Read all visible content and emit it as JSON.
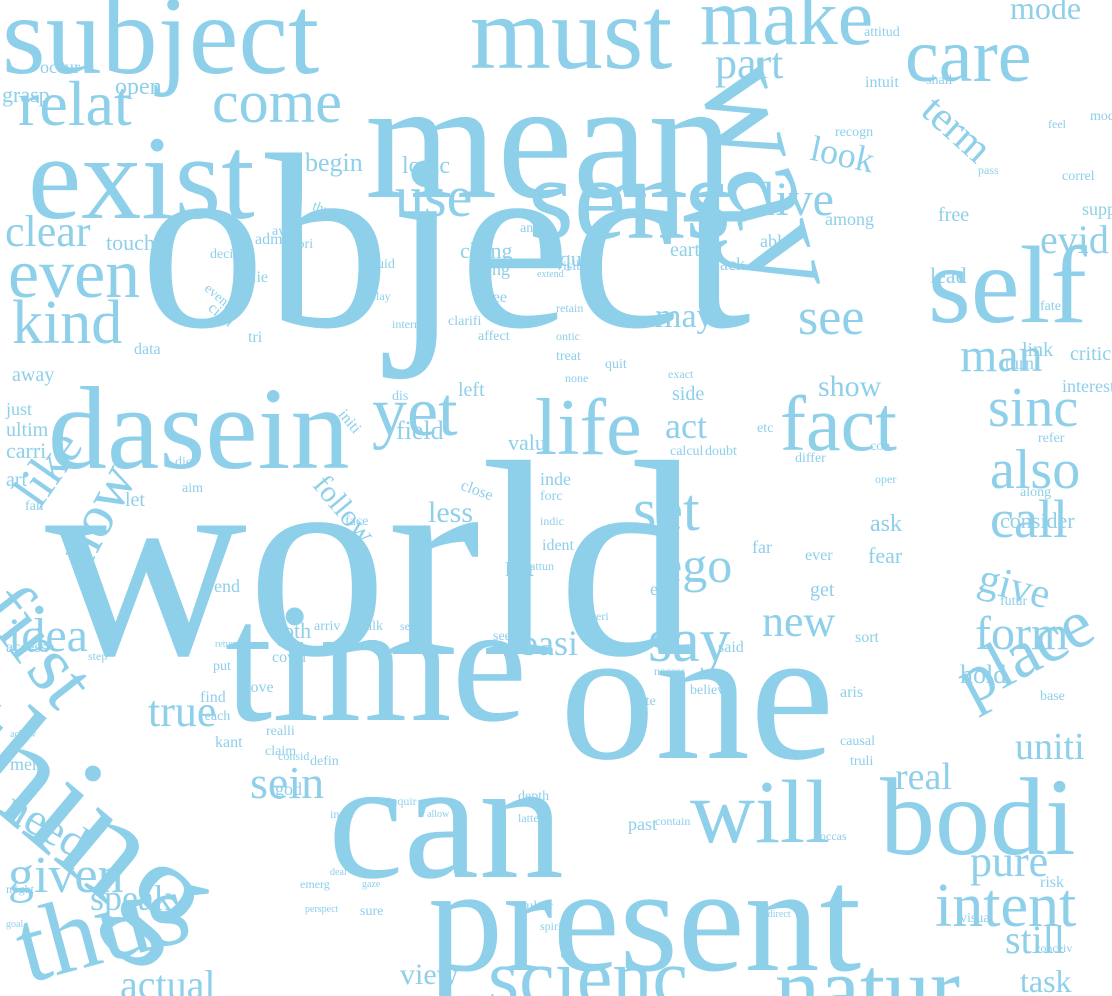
{
  "word_color": "#8ecfea",
  "background": "#ffffff",
  "words": [
    {
      "text": "subject",
      "weight": 112
    },
    {
      "text": "must",
      "weight": 104
    },
    {
      "text": "make",
      "weight": 80
    },
    {
      "text": "mode",
      "weight": 32
    },
    {
      "text": "mean",
      "weight": 170
    },
    {
      "text": "care",
      "weight": 76
    },
    {
      "text": "way",
      "weight": 140
    },
    {
      "text": "part",
      "weight": 44
    },
    {
      "text": "relat",
      "weight": 64
    },
    {
      "text": "come",
      "weight": 60
    },
    {
      "text": "exist",
      "weight": 120
    },
    {
      "text": "sens",
      "weight": 118
    },
    {
      "text": "term",
      "weight": 42
    },
    {
      "text": "look",
      "weight": 36
    },
    {
      "text": "use",
      "weight": 58
    },
    {
      "text": "live",
      "weight": 48
    },
    {
      "text": "evid",
      "weight": 40
    },
    {
      "text": "clear",
      "weight": 44
    },
    {
      "text": "object",
      "weight": 250
    },
    {
      "text": "even",
      "weight": 70
    },
    {
      "text": "self",
      "weight": 110
    },
    {
      "text": "kind",
      "weight": 62
    },
    {
      "text": "see",
      "weight": 52
    },
    {
      "text": "man",
      "weight": 48
    },
    {
      "text": "may",
      "weight": 34
    },
    {
      "text": "dasein",
      "weight": 118
    },
    {
      "text": "life",
      "weight": 80
    },
    {
      "text": "fact",
      "weight": 78
    },
    {
      "text": "sinc",
      "weight": 56
    },
    {
      "text": "yet",
      "weight": 70
    },
    {
      "text": "act",
      "weight": 36
    },
    {
      "text": "show",
      "weight": 30
    },
    {
      "text": "also",
      "weight": 56
    },
    {
      "text": "world",
      "weight": 280
    },
    {
      "text": "like",
      "weight": 52
    },
    {
      "text": "now",
      "weight": 60
    },
    {
      "text": "call",
      "weight": 54
    },
    {
      "text": "set",
      "weight": 60
    },
    {
      "text": "first",
      "weight": 80
    },
    {
      "text": "ego",
      "weight": 50
    },
    {
      "text": "give",
      "weight": 42
    },
    {
      "text": "idea",
      "weight": 48
    },
    {
      "text": "say",
      "weight": 62
    },
    {
      "text": "new",
      "weight": 44
    },
    {
      "text": "form",
      "weight": 48
    },
    {
      "text": "time",
      "weight": 170
    },
    {
      "text": "one",
      "weight": 190
    },
    {
      "text": "place",
      "weight": 68
    },
    {
      "text": "true",
      "weight": 44
    },
    {
      "text": "thing",
      "weight": 150
    },
    {
      "text": "uniti",
      "weight": 38
    },
    {
      "text": "can",
      "weight": 170
    },
    {
      "text": "sein",
      "weight": 46
    },
    {
      "text": "real",
      "weight": 38
    },
    {
      "text": "will",
      "weight": 90
    },
    {
      "text": "bodi",
      "weight": 110
    },
    {
      "text": "need",
      "weight": 46
    },
    {
      "text": "given",
      "weight": 52
    },
    {
      "text": "pure",
      "weight": 44
    },
    {
      "text": "speak",
      "weight": 36
    },
    {
      "text": "present",
      "weight": 150
    },
    {
      "text": "intent",
      "weight": 62
    },
    {
      "text": "thus",
      "weight": 104
    },
    {
      "text": "still",
      "weight": 40
    },
    {
      "text": "scienc",
      "weight": 80
    },
    {
      "text": "natur",
      "weight": 90
    },
    {
      "text": "actual",
      "weight": 40
    },
    {
      "text": "view",
      "weight": 30
    },
    {
      "text": "task",
      "weight": 32
    },
    {
      "text": "basi",
      "weight": 36
    },
    {
      "text": "follow",
      "weight": 30
    },
    {
      "text": "less",
      "weight": 30
    },
    {
      "text": "ask",
      "weight": 24
    },
    {
      "text": "fear",
      "weight": 22
    },
    {
      "text": "hold",
      "weight": 26
    },
    {
      "text": "logic",
      "weight": 24
    },
    {
      "text": "begin",
      "weight": 26
    },
    {
      "text": "open",
      "weight": 24
    },
    {
      "text": "occur",
      "weight": 18
    },
    {
      "text": "grasp",
      "weight": 22
    },
    {
      "text": "touch",
      "weight": 22
    },
    {
      "text": "admit",
      "weight": 16
    },
    {
      "text": "priori",
      "weight": 14
    },
    {
      "text": "analyt",
      "weight": 14
    },
    {
      "text": "equal",
      "weight": 22
    },
    {
      "text": "chang",
      "weight": 22
    },
    {
      "text": "three",
      "weight": 16
    },
    {
      "text": "earth",
      "weight": 20
    },
    {
      "text": "lead",
      "weight": 22
    },
    {
      "text": "free",
      "weight": 20
    },
    {
      "text": "turn",
      "weight": 18
    },
    {
      "text": "link",
      "weight": 20
    },
    {
      "text": "critic",
      "weight": 20
    },
    {
      "text": "interest",
      "weight": 18
    },
    {
      "text": "refer",
      "weight": 14
    },
    {
      "text": "along",
      "weight": 14
    },
    {
      "text": "feel",
      "weight": 12
    },
    {
      "text": "pass",
      "weight": 12
    },
    {
      "text": "shall",
      "weight": 14
    },
    {
      "text": "intuit",
      "weight": 16
    },
    {
      "text": "among",
      "weight": 18
    },
    {
      "text": "recogn",
      "weight": 14
    },
    {
      "text": "attitud",
      "weight": 14
    },
    {
      "text": "suppos",
      "weight": 18
    },
    {
      "text": "correl",
      "weight": 14
    },
    {
      "text": "modal",
      "weight": 14
    },
    {
      "text": "thrown",
      "weight": 14
    },
    {
      "text": "guid",
      "weight": 14
    },
    {
      "text": "play",
      "weight": 12
    },
    {
      "text": "visibl",
      "weight": 14
    },
    {
      "text": "retain",
      "weight": 12
    },
    {
      "text": "extend",
      "weight": 10
    },
    {
      "text": "ontic",
      "weight": 12
    },
    {
      "text": "long",
      "weight": 18
    },
    {
      "text": "lack",
      "weight": 18
    },
    {
      "text": "abl",
      "weight": 18
    },
    {
      "text": "fate",
      "weight": 14
    },
    {
      "text": "lie",
      "weight": 16
    },
    {
      "text": "decis",
      "weight": 14
    },
    {
      "text": "event",
      "weight": 14
    },
    {
      "text": "circl",
      "weight": 16
    },
    {
      "text": "awar",
      "weight": 14
    },
    {
      "text": "tri",
      "weight": 16
    },
    {
      "text": "intern",
      "weight": 12
    },
    {
      "text": "clarifi",
      "weight": 14
    },
    {
      "text": "affect",
      "weight": 14
    },
    {
      "text": "treat",
      "weight": 14
    },
    {
      "text": "none",
      "weight": 12
    },
    {
      "text": "exact",
      "weight": 12
    },
    {
      "text": "quit",
      "weight": 14
    },
    {
      "text": "data",
      "weight": 16
    },
    {
      "text": "away",
      "weight": 20
    },
    {
      "text": "dis",
      "weight": 14
    },
    {
      "text": "left",
      "weight": 20
    },
    {
      "text": "side",
      "weight": 20
    },
    {
      "text": "etc",
      "weight": 14
    },
    {
      "text": "just",
      "weight": 18
    },
    {
      "text": "ultim",
      "weight": 20
    },
    {
      "text": "carri",
      "weight": 22
    },
    {
      "text": "art",
      "weight": 20
    },
    {
      "text": "field",
      "weight": 26
    },
    {
      "text": "valu",
      "weight": 22
    },
    {
      "text": "initi",
      "weight": 16
    },
    {
      "text": "calcul",
      "weight": 14
    },
    {
      "text": "doubt",
      "weight": 14
    },
    {
      "text": "differ",
      "weight": 14
    },
    {
      "text": "oper",
      "weight": 12
    },
    {
      "text": "con",
      "weight": 14
    },
    {
      "text": "ever",
      "weight": 16
    },
    {
      "text": "consider",
      "weight": 22
    },
    {
      "text": "die",
      "weight": 14
    },
    {
      "text": "aim",
      "weight": 14
    },
    {
      "text": "close",
      "weight": 16
    },
    {
      "text": "inde",
      "weight": 18
    },
    {
      "text": "forc",
      "weight": 14
    },
    {
      "text": "indic",
      "weight": 12
    },
    {
      "text": "ident",
      "weight": 16
    },
    {
      "text": "attun",
      "weight": 12
    },
    {
      "text": "face",
      "weight": 14
    },
    {
      "text": "fall",
      "weight": 14
    },
    {
      "text": "let",
      "weight": 20
    },
    {
      "text": "far",
      "weight": 18
    },
    {
      "text": "get",
      "weight": 20
    },
    {
      "text": "eye",
      "weight": 18
    },
    {
      "text": "end",
      "weight": 18
    },
    {
      "text": "lost",
      "weight": 20
    },
    {
      "text": "futur",
      "weight": 14
    },
    {
      "text": "return",
      "weight": 10
    },
    {
      "text": "put",
      "weight": 14
    },
    {
      "text": "move",
      "weight": 16
    },
    {
      "text": "find",
      "weight": 16
    },
    {
      "text": "noth",
      "weight": 22
    },
    {
      "text": "arriv",
      "weight": 14
    },
    {
      "text": "talk",
      "weight": 14
    },
    {
      "text": "seen",
      "weight": 12
    },
    {
      "text": "seem",
      "weight": 14
    },
    {
      "text": "materi",
      "weight": 12
    },
    {
      "text": "said",
      "weight": 16
    },
    {
      "text": "sort",
      "weight": 16
    },
    {
      "text": "aris",
      "weight": 16
    },
    {
      "text": "base",
      "weight": 14
    },
    {
      "text": "step",
      "weight": 12
    },
    {
      "text": "access",
      "weight": 16
    },
    {
      "text": "cover",
      "weight": 16
    },
    {
      "text": "reach",
      "weight": 14
    },
    {
      "text": "realli",
      "weight": 14
    },
    {
      "text": "consid",
      "weight": 12
    },
    {
      "text": "god",
      "weight": 18
    },
    {
      "text": "necess",
      "weight": 12
    },
    {
      "text": "state",
      "weight": 14
    },
    {
      "text": "believ",
      "weight": 14
    },
    {
      "text": "causal",
      "weight": 14
    },
    {
      "text": "truli",
      "weight": 14
    },
    {
      "text": "achiev",
      "weight": 10
    },
    {
      "text": "men",
      "weight": 18
    },
    {
      "text": "kant",
      "weight": 16
    },
    {
      "text": "claim",
      "weight": 14
    },
    {
      "text": "defin",
      "weight": 14
    },
    {
      "text": "inquir",
      "weight": 12
    },
    {
      "text": "allow",
      "weight": 10
    },
    {
      "text": "inner",
      "weight": 12
    },
    {
      "text": "depth",
      "weight": 14
    },
    {
      "text": "latter",
      "weight": 12
    },
    {
      "text": "contain",
      "weight": 12
    },
    {
      "text": "past",
      "weight": 18
    },
    {
      "text": "occas",
      "weight": 12
    },
    {
      "text": "risk",
      "weight": 16
    },
    {
      "text": "deal",
      "weight": 10
    },
    {
      "text": "gaze",
      "weight": 10
    },
    {
      "text": "might",
      "weight": 12
    },
    {
      "text": "goal",
      "weight": 10
    },
    {
      "text": "emerg",
      "weight": 12
    },
    {
      "text": "perspect",
      "weight": 10
    },
    {
      "text": "sure",
      "weight": 14
    },
    {
      "text": "cultur",
      "weight": 14
    },
    {
      "text": "spirit",
      "weight": 12
    },
    {
      "text": "visual",
      "weight": 14
    },
    {
      "text": "indirect",
      "weight": 10
    },
    {
      "text": "conceiv",
      "weight": 12
    },
    {
      "text": "cogito",
      "weight": 14
    },
    {
      "text": "qualiti",
      "weight": 10
    },
    {
      "text": "vision",
      "weight": 10
    },
    {
      "text": "whose",
      "weight": 14
    },
    {
      "text": "vital",
      "weight": 10
    },
    {
      "text": "blind",
      "weight": 10
    }
  ]
}
